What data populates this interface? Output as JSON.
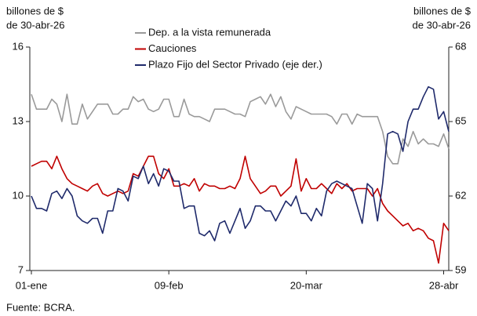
{
  "chart_data": {
    "type": "line",
    "y_label": [
      "billones de $",
      "de 30-abr-26"
    ],
    "y2_label": [
      "billones de $",
      "de 30-abr-26"
    ],
    "source": "Fuente: BCRA.",
    "categories": [
      "01-ene",
      null,
      null,
      null,
      null,
      null,
      null,
      null,
      null,
      null,
      null,
      null,
      null,
      null,
      null,
      null,
      null,
      null,
      null,
      null,
      null,
      null,
      null,
      null,
      null,
      null,
      null,
      "09-feb",
      null,
      null,
      null,
      null,
      null,
      null,
      null,
      null,
      null,
      null,
      null,
      null,
      null,
      null,
      null,
      null,
      null,
      null,
      null,
      null,
      null,
      null,
      null,
      null,
      null,
      null,
      "20-mar",
      null,
      null,
      null,
      null,
      null,
      null,
      null,
      null,
      null,
      null,
      null,
      null,
      null,
      null,
      null,
      null,
      null,
      null,
      null,
      null,
      null,
      null,
      null,
      null,
      null,
      null,
      "28-abr",
      null
    ],
    "ylim": [
      7,
      16
    ],
    "yticks": [
      7,
      10,
      13,
      16
    ],
    "y2lim": [
      59,
      68
    ],
    "y2ticks": [
      59,
      62,
      65,
      68
    ],
    "series": [
      {
        "name": "Dep. a la vista remunerada",
        "color": "#9a9a9a",
        "values": [
          14.1,
          13.5,
          13.5,
          13.5,
          13.9,
          13.7,
          13.0,
          14.1,
          12.9,
          12.9,
          13.7,
          13.1,
          13.4,
          13.7,
          13.7,
          13.7,
          13.3,
          13.3,
          13.5,
          13.5,
          14.0,
          13.8,
          13.9,
          13.5,
          13.4,
          13.5,
          13.9,
          13.9,
          13.2,
          13.2,
          13.9,
          13.3,
          13.2,
          13.2,
          13.1,
          13.0,
          13.5,
          13.5,
          13.5,
          13.4,
          13.3,
          13.3,
          13.2,
          13.8,
          13.9,
          14.0,
          13.7,
          14.1,
          13.6,
          14.0,
          13.4,
          13.1,
          13.6,
          13.5,
          13.4,
          13.3,
          13.3,
          13.3,
          13.3,
          13.2,
          12.9,
          13.3,
          13.3,
          12.9,
          13.3,
          13.2,
          13.2,
          13.2,
          13.2,
          12.6,
          11.6,
          11.3,
          11.3,
          12.3,
          12.0,
          12.6,
          12.1,
          12.3,
          12.1,
          12.1,
          12.0,
          12.5,
          11.9
        ]
      },
      {
        "name": "Cauciones",
        "color": "#c00000",
        "values": [
          11.2,
          11.3,
          11.4,
          11.4,
          11.1,
          11.6,
          11.1,
          10.7,
          10.5,
          10.4,
          10.3,
          10.2,
          10.4,
          10.5,
          10.1,
          10.0,
          10.1,
          10.2,
          10.1,
          10.2,
          10.9,
          10.8,
          11.2,
          11.6,
          11.6,
          10.9,
          10.7,
          11.1,
          10.4,
          10.4,
          10.5,
          10.4,
          10.7,
          10.2,
          10.5,
          10.4,
          10.4,
          10.3,
          10.3,
          10.4,
          10.3,
          10.7,
          11.6,
          10.7,
          10.4,
          10.1,
          10.2,
          10.4,
          10.4,
          10.0,
          10.2,
          10.4,
          11.5,
          10.2,
          10.7,
          10.3,
          10.3,
          10.5,
          10.3,
          10.1,
          10.5,
          10.3,
          10.5,
          10.2,
          10.3,
          10.3,
          10.3,
          10.0,
          10.3,
          9.7,
          9.4,
          9.2,
          9.0,
          8.8,
          8.9,
          8.6,
          8.7,
          8.6,
          8.3,
          8.2,
          7.3,
          8.9,
          8.6
        ]
      },
      {
        "name": "Plazo Fijo del Sector Privado (eje der.)",
        "color": "#1f2a6b",
        "axis": "y2",
        "values": [
          62.0,
          61.5,
          61.5,
          61.4,
          62.1,
          62.2,
          61.9,
          62.3,
          62.0,
          61.2,
          61.0,
          60.9,
          61.1,
          61.1,
          60.5,
          61.4,
          61.4,
          62.3,
          62.2,
          61.8,
          62.8,
          62.7,
          63.2,
          62.5,
          62.9,
          62.4,
          63.1,
          63.0,
          62.6,
          62.6,
          61.5,
          61.6,
          61.6,
          60.5,
          60.4,
          60.6,
          60.2,
          60.9,
          61.0,
          60.5,
          61.0,
          61.5,
          60.7,
          61.0,
          61.6,
          61.6,
          61.4,
          61.4,
          61.0,
          61.4,
          61.8,
          61.6,
          62.0,
          61.3,
          61.3,
          61.0,
          61.5,
          61.2,
          62.2,
          62.5,
          62.6,
          62.5,
          62.4,
          62.3,
          61.6,
          60.9,
          62.5,
          62.3,
          61.0,
          62.5,
          64.5,
          64.6,
          64.5,
          63.8,
          65.0,
          65.5,
          65.5,
          66.0,
          66.4,
          66.3,
          65.1,
          65.4,
          64.6
        ]
      }
    ]
  }
}
